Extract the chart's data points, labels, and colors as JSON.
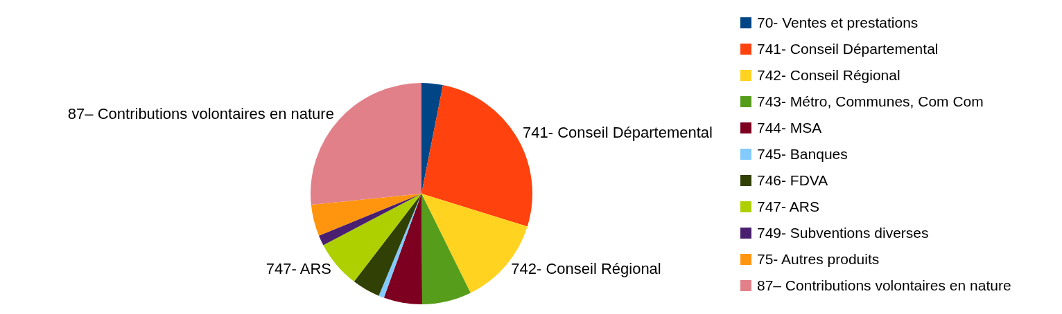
{
  "chart_data": {
    "type": "pie",
    "legend": "right",
    "categories": [
      "70- Ventes et prestations",
      "741- Conseil Départemental",
      "742- Conseil Régional",
      "743- Métro, Communes, Com Com",
      "744- MSA",
      "745- Banques",
      "746- FDVA",
      "747- ARS",
      "749- Subventions diverses",
      "75- Autres produits",
      "87– Contributions volontaires en nature"
    ],
    "values": [
      3.1,
      26.7,
      12.9,
      7.2,
      5.6,
      0.8,
      4.1,
      6.9,
      1.5,
      4.6,
      26.6
    ],
    "colors": [
      "#004586",
      "#ff420e",
      "#ffd320",
      "#579d1c",
      "#7e0021",
      "#83caff",
      "#314004",
      "#aecf00",
      "#4b1f6f",
      "#ff950e",
      "#e2808a"
    ],
    "annotations": [
      {
        "text": "741- Conseil Départemental",
        "x": "741- Conseil Départemental"
      },
      {
        "text": "742- Conseil Régional",
        "x": "742- Conseil Régional"
      },
      {
        "text": "747- ARS",
        "x": "747- ARS"
      },
      {
        "text": "87– Contributions volontaires en nature",
        "x": "87– Contributions volontaires en nature"
      }
    ]
  }
}
